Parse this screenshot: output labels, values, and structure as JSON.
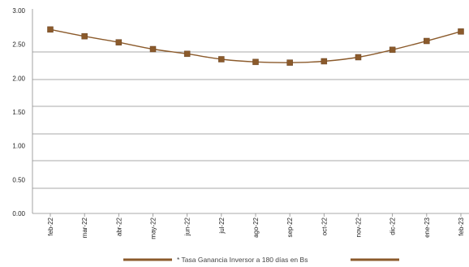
{
  "chart_data": {
    "type": "line",
    "title": "",
    "xlabel": "",
    "ylabel": "",
    "categories": [
      "feb-22",
      "mar-22",
      "abr-22",
      "may-22",
      "jun-22",
      "jul-22",
      "ago-22",
      "sep-22",
      "oct-22",
      "nov-22",
      "dic-22",
      "ene-23",
      "feb-23"
    ],
    "series": [
      {
        "name": "* Tasa Ganancia Inversor a 180 días en Bs",
        "values": [
          2.72,
          2.62,
          2.53,
          2.43,
          2.36,
          2.28,
          2.24,
          2.23,
          2.25,
          2.31,
          2.42,
          2.55,
          2.69
        ],
        "color": "#8B5A2B"
      }
    ],
    "y_ticks": [
      "0.00",
      "0.50",
      "1.00",
      "1.50",
      "2.00",
      "2.50",
      "3.00"
    ],
    "ylim": [
      0,
      3
    ],
    "grid": true,
    "legend_position": "bottom-center"
  }
}
